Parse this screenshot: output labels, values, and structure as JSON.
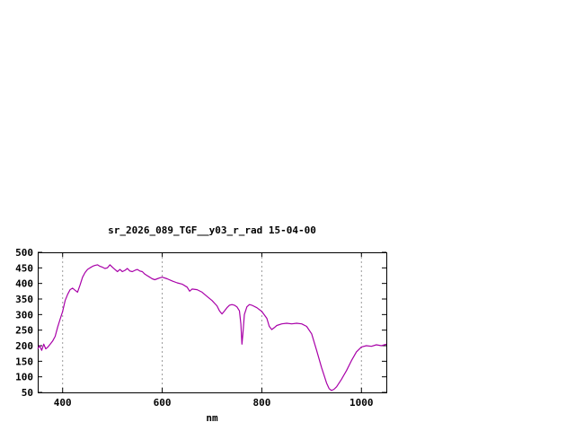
{
  "window": {
    "background_color": "#ffffff"
  },
  "chart_data": {
    "type": "line",
    "title": "sr_2026_089_TGF__y03_r_rad 15-04-00",
    "xlabel": "nm",
    "ylabel": "",
    "xlim": [
      350,
      1050
    ],
    "ylim": [
      50,
      500
    ],
    "xticks": [
      400,
      600,
      800,
      1000
    ],
    "yticks": [
      50,
      100,
      150,
      200,
      250,
      300,
      350,
      400,
      450,
      500
    ],
    "grid": "vertical-dashed",
    "legend_position": "none",
    "line_color": "#a800a8",
    "frame_color": "#000000",
    "grid_color": "#9a9a9a",
    "series": [
      {
        "name": "sr_2026_089_TGF__y03_r_rad",
        "x": [
          350,
          354,
          358,
          362,
          366,
          370,
          375,
          380,
          385,
          390,
          395,
          400,
          405,
          410,
          415,
          420,
          425,
          430,
          435,
          440,
          445,
          450,
          455,
          460,
          465,
          470,
          475,
          480,
          485,
          490,
          495,
          500,
          505,
          510,
          515,
          520,
          525,
          530,
          535,
          540,
          545,
          550,
          555,
          560,
          565,
          570,
          575,
          580,
          585,
          590,
          595,
          600,
          610,
          620,
          630,
          640,
          650,
          655,
          660,
          670,
          680,
          690,
          700,
          710,
          715,
          720,
          725,
          730,
          735,
          740,
          745,
          750,
          755,
          758,
          760,
          762,
          765,
          770,
          775,
          780,
          790,
          800,
          810,
          815,
          820,
          825,
          830,
          840,
          850,
          860,
          870,
          880,
          890,
          900,
          910,
          920,
          930,
          935,
          940,
          945,
          950,
          960,
          970,
          980,
          990,
          1000,
          1010,
          1020,
          1030,
          1040,
          1050
        ],
        "y": [
          190,
          200,
          185,
          205,
          190,
          195,
          205,
          215,
          230,
          260,
          285,
          310,
          345,
          365,
          380,
          385,
          378,
          372,
          395,
          420,
          435,
          445,
          450,
          455,
          458,
          460,
          455,
          452,
          448,
          450,
          460,
          452,
          445,
          438,
          445,
          438,
          442,
          448,
          440,
          438,
          442,
          445,
          440,
          438,
          430,
          425,
          420,
          415,
          412,
          415,
          418,
          420,
          415,
          408,
          402,
          398,
          388,
          375,
          382,
          380,
          372,
          358,
          345,
          328,
          312,
          302,
          312,
          322,
          330,
          332,
          330,
          325,
          312,
          270,
          205,
          240,
          300,
          325,
          332,
          330,
          322,
          310,
          288,
          262,
          252,
          258,
          265,
          270,
          272,
          270,
          272,
          270,
          262,
          238,
          185,
          130,
          80,
          62,
          56,
          60,
          68,
          92,
          120,
          152,
          180,
          196,
          200,
          198,
          203,
          200,
          205
        ]
      }
    ]
  }
}
